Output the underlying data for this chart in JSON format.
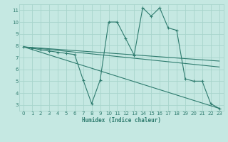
{
  "xlabel": "Humidex (Indice chaleur)",
  "bg_color": "#c5e8e2",
  "grid_color": "#a8d4cc",
  "line_color": "#2e7b6e",
  "xlim": [
    -0.5,
    23.5
  ],
  "ylim": [
    2.5,
    11.5
  ],
  "xticks": [
    0,
    1,
    2,
    3,
    4,
    5,
    6,
    7,
    8,
    9,
    10,
    11,
    12,
    13,
    14,
    15,
    16,
    17,
    18,
    19,
    20,
    21,
    22,
    23
  ],
  "yticks": [
    3,
    4,
    5,
    6,
    7,
    8,
    9,
    10,
    11
  ],
  "line1_x": [
    0,
    1,
    2,
    3,
    4,
    5,
    6,
    7,
    8,
    9,
    10,
    11,
    12,
    13,
    14,
    15,
    16,
    17,
    18,
    19,
    20,
    21,
    22,
    23
  ],
  "line1_y": [
    7.9,
    7.8,
    7.65,
    7.55,
    7.45,
    7.35,
    7.25,
    5.1,
    3.1,
    5.1,
    10.0,
    10.0,
    8.6,
    7.2,
    11.2,
    10.5,
    11.2,
    9.5,
    9.3,
    5.2,
    5.0,
    5.0,
    3.1,
    2.7
  ],
  "line2_x": [
    0,
    23
  ],
  "line2_y": [
    7.9,
    2.7
  ],
  "line3_x": [
    0,
    23
  ],
  "line3_y": [
    7.9,
    6.2
  ],
  "line4_x": [
    0,
    23
  ],
  "line4_y": [
    7.9,
    6.7
  ]
}
